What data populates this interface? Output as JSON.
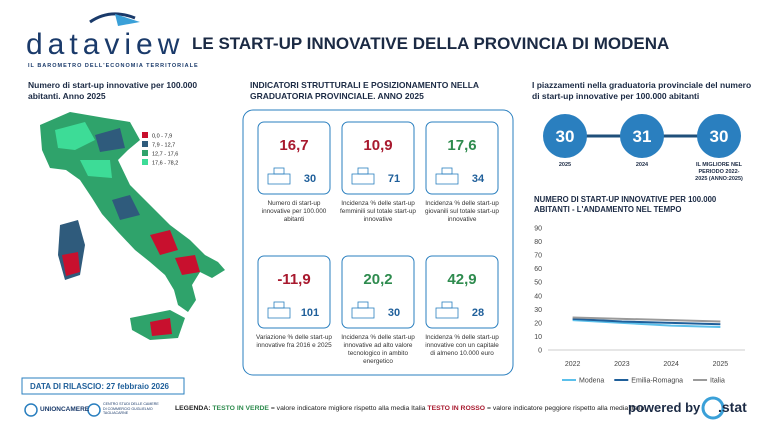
{
  "header": {
    "logo": "dataview",
    "tagline": "IL BAROMETRO DELL'ECONOMIA TERRITORIALE",
    "title": "LE START-UP INNOVATIVE DELLA PROVINCIA DI MODENA"
  },
  "map": {
    "title": "Numero di start-up innovative per 100.000 abitanti. Anno 2025",
    "legend": [
      {
        "label": "0,0 - 7,9",
        "color": "#c8102e"
      },
      {
        "label": "7,9 - 12,7",
        "color": "#2f5b7c"
      },
      {
        "label": "12,7 - 17,6",
        "color": "#2fa36b"
      },
      {
        "label": "17,6 - 78,2",
        "color": "#3ddc97"
      }
    ]
  },
  "indicators": {
    "title": "INDICATORI STRUTTURALI E POSIZIONAMENTO NELLA GRADUATORIA PROVINCIALE. ANNO 2025",
    "cards": [
      {
        "value": "16,7",
        "rank": 30,
        "color": "#a8192e",
        "text": "Numero di start-up innovative per 100.000 abitanti"
      },
      {
        "value": "10,9",
        "rank": 71,
        "color": "#a8192e",
        "text": "Incidenza % delle start-up femminili sul totale start-up innovative"
      },
      {
        "value": "17,6",
        "rank": 34,
        "color": "#2e8b4e",
        "text": "Incidenza % delle start-up giovanili sul totale start-up innovative"
      },
      {
        "value": "-11,9",
        "rank": 101,
        "color": "#a8192e",
        "text": "Variazione % delle start-up innovative fra 2016 e 2025"
      },
      {
        "value": "20,2",
        "rank": 30,
        "color": "#2e8b4e",
        "text": "Incidenza % delle start-up innovative ad alto valore tecnologico in ambito energetico"
      },
      {
        "value": "42,9",
        "rank": 28,
        "color": "#2e8b4e",
        "text": "Incidenza % delle start-up innovative con un capitale di almeno 10.000 euro"
      }
    ]
  },
  "ranking": {
    "title": "I piazzamenti nella graduatoria provinciale del numero di start-up innovative per 100.000 abitanti",
    "items": [
      {
        "value": 30,
        "label": "2025"
      },
      {
        "value": 31,
        "label": "2024"
      },
      {
        "value": 30,
        "label": "IL MIGLIORE NEL PERIODO 2022-2025 (ANNO:2025)"
      }
    ]
  },
  "chart_data": {
    "type": "line",
    "title": "NUMERO DI START-UP INNOVATIVE PER 100.000 ABITANTI - L'ANDAMENTO NEL TEMPO",
    "categories": [
      "2022",
      "2023",
      "2024",
      "2025"
    ],
    "ylim": [
      0,
      90
    ],
    "yticks": [
      0,
      10,
      20,
      30,
      40,
      50,
      60,
      70,
      80,
      90
    ],
    "grid": false,
    "series": [
      {
        "name": "Modena",
        "color": "#5bc0eb",
        "values": [
          22,
          20,
          18,
          17
        ]
      },
      {
        "name": "Emilia-Romagna",
        "color": "#1f5f9a",
        "values": [
          23,
          21,
          20,
          19
        ]
      },
      {
        "name": "Italia",
        "color": "#9a9a9a",
        "values": [
          24,
          23,
          22,
          21
        ]
      }
    ]
  },
  "footer": {
    "release": "DATA DI RILASCIO: 27 febbraio 2026",
    "orgs": [
      "UNIONCAMERE",
      "CENTRO STUDI DELLE CAMERE DI COMMERCIO GUGLIELMO TAGLIACARNE"
    ],
    "legend": {
      "lead": "LEGENDA:",
      "green": "TESTO IN VERDE",
      "green_text": "= valore indicatore migliore rispetto alla media Italia",
      "red": "TESTO IN ROSSO",
      "red_text": "= valore indicatore peggiore rispetto alla media Italia"
    },
    "powered": "powered by",
    "brand": ".stat"
  }
}
